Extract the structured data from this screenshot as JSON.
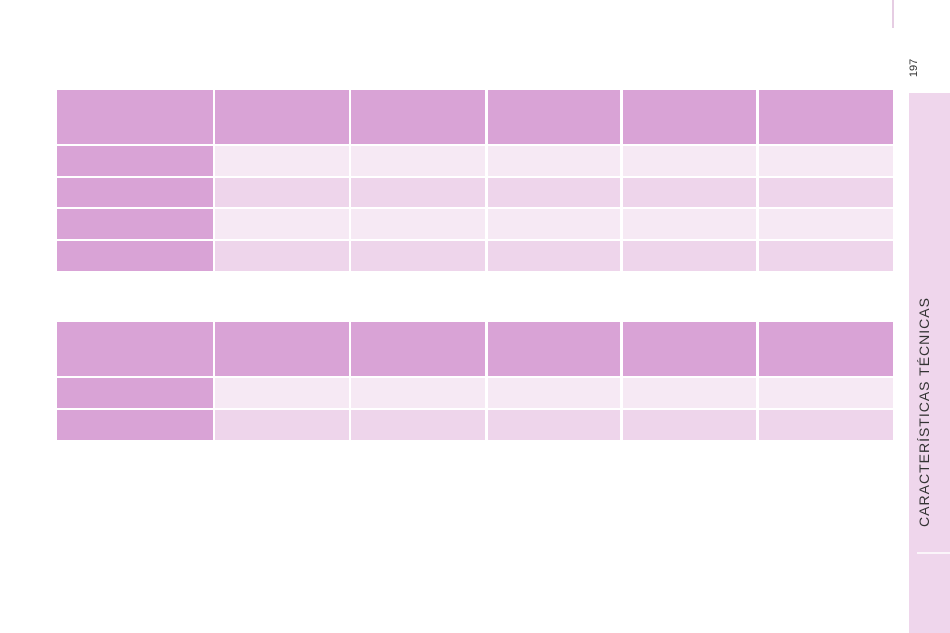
{
  "page_number": "197",
  "section_tab": "CARACTERÍSTICAS TÉCNICAS"
}
